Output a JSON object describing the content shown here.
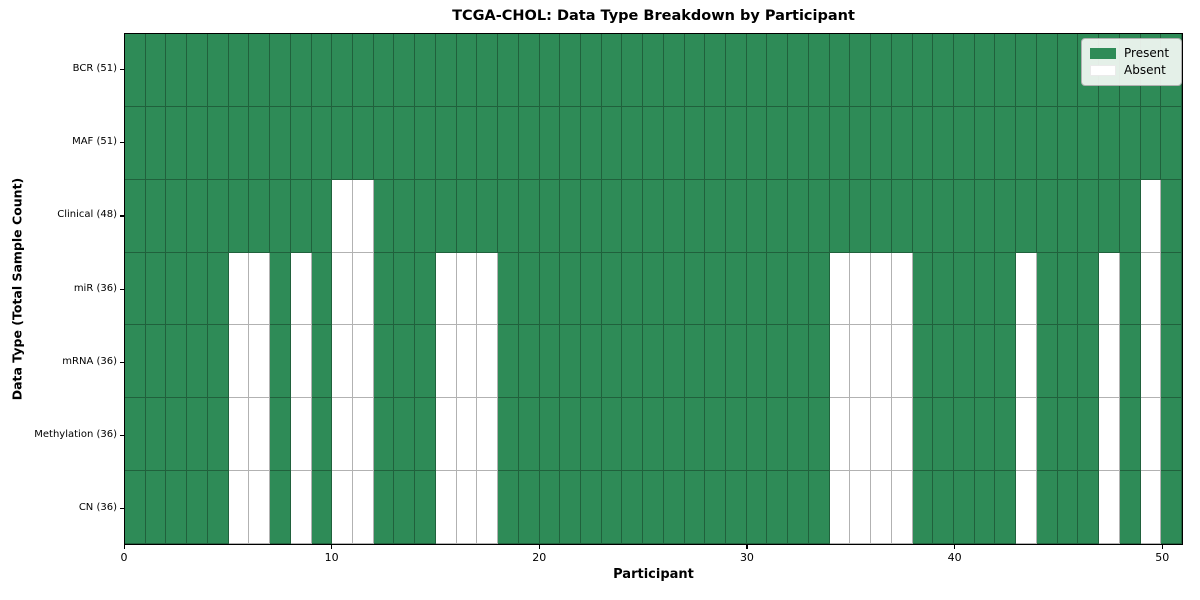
{
  "chart_data": {
    "type": "heatmap",
    "title": "TCGA-CHOL: Data Type Breakdown by Participant",
    "xlabel": "Participant",
    "ylabel": "Data Type (Total Sample Count)",
    "n_participants": 51,
    "x_range": [
      0,
      51
    ],
    "x_ticks": [
      0,
      10,
      20,
      30,
      40,
      50
    ],
    "grid": true,
    "legend": {
      "position": "upper right",
      "entries": [
        {
          "label": "Present",
          "color": "#2e8b57"
        },
        {
          "label": "Absent",
          "color": "#ffffff"
        }
      ]
    },
    "colors": {
      "present": "#2e8b57",
      "absent": "#ffffff",
      "gridline": "rgba(0,0,0,0.30)",
      "frame": "#000000"
    },
    "rows": [
      {
        "name": "BCR",
        "label": "BCR (51)",
        "present_count": 51,
        "absent_participants": []
      },
      {
        "name": "MAF",
        "label": "MAF (51)",
        "present_count": 51,
        "absent_participants": []
      },
      {
        "name": "Clinical",
        "label": "Clinical (48)",
        "present_count": 48,
        "absent_participants": [
          10,
          11,
          49
        ]
      },
      {
        "name": "miR",
        "label": "miR (36)",
        "present_count": 36,
        "absent_participants": [
          5,
          6,
          8,
          10,
          11,
          15,
          16,
          17,
          34,
          35,
          36,
          37,
          43,
          47,
          49
        ]
      },
      {
        "name": "mRNA",
        "label": "mRNA (36)",
        "present_count": 36,
        "absent_participants": [
          5,
          6,
          8,
          10,
          11,
          15,
          16,
          17,
          34,
          35,
          36,
          37,
          43,
          47,
          49
        ]
      },
      {
        "name": "Methylation",
        "label": "Methylation (36)",
        "present_count": 36,
        "absent_participants": [
          5,
          6,
          8,
          10,
          11,
          15,
          16,
          17,
          34,
          35,
          36,
          37,
          43,
          47,
          49
        ]
      },
      {
        "name": "CN",
        "label": "CN (36)",
        "present_count": 36,
        "absent_participants": [
          5,
          6,
          8,
          10,
          11,
          15,
          16,
          17,
          34,
          35,
          36,
          37,
          43,
          47,
          49
        ]
      }
    ]
  }
}
